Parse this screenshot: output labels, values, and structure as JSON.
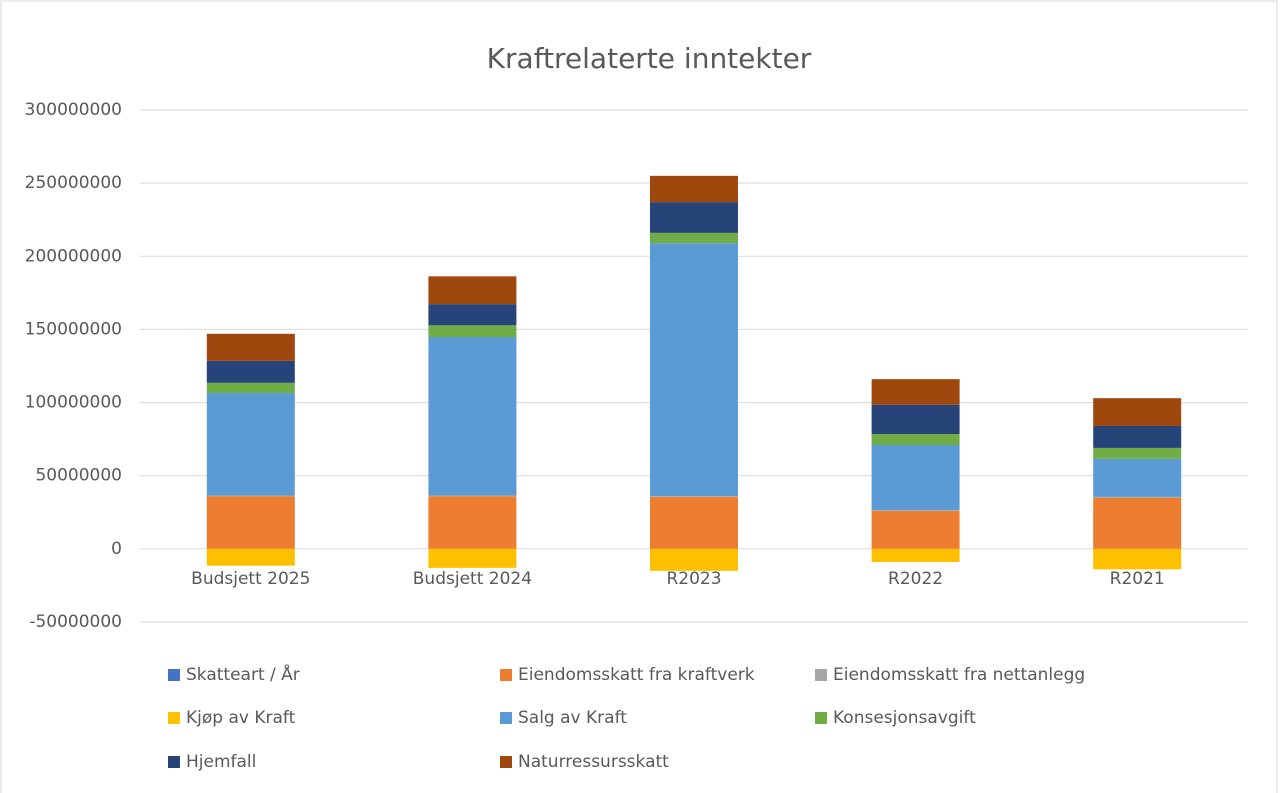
{
  "chart_data": {
    "type": "stacked_bar",
    "title": "Kraftrelaterte inntekter",
    "categories": [
      "Budsjett 2025",
      "Budsjett 2024",
      "R2023",
      "R2022",
      "R2021"
    ],
    "series": [
      {
        "name": "Skatteart / År",
        "color": "#4472c4",
        "values": [
          0,
          0,
          0,
          0,
          0
        ]
      },
      {
        "name": "Eiendomsskatt fra kraftverk",
        "color": "#ed7d31",
        "values": [
          36000000,
          36000000,
          35500000,
          26000000,
          35000000
        ]
      },
      {
        "name": "Eiendomsskatt fra nettanlegg",
        "color": "#a5a5a5",
        "values": [
          500000,
          500000,
          500000,
          500000,
          500000
        ]
      },
      {
        "name": "Kjøp av Kraft",
        "color": "#ffc000",
        "values": [
          -11500000,
          -13000000,
          -15000000,
          -9000000,
          -14000000
        ]
      },
      {
        "name": "Salg av Kraft",
        "color": "#5b9bd5",
        "values": [
          70000000,
          108300000,
          173000000,
          44500000,
          26000000
        ]
      },
      {
        "name": "Konsesjonsavgift",
        "color": "#70ad47",
        "values": [
          7000000,
          8000000,
          7000000,
          7500000,
          7500000
        ]
      },
      {
        "name": "Hjemfall",
        "color": "#264478",
        "values": [
          15000000,
          14500000,
          21000000,
          20000000,
          15000000
        ]
      },
      {
        "name": "Naturressursskatt",
        "color": "#9e480e",
        "values": [
          18500000,
          19000000,
          18000000,
          17500000,
          19000000
        ]
      }
    ],
    "ylim": [
      -50000000,
      300000000
    ],
    "yticks": [
      -50000000,
      0,
      50000000,
      100000000,
      150000000,
      200000000,
      250000000,
      300000000
    ],
    "grid": true,
    "legend": "bottom"
  }
}
